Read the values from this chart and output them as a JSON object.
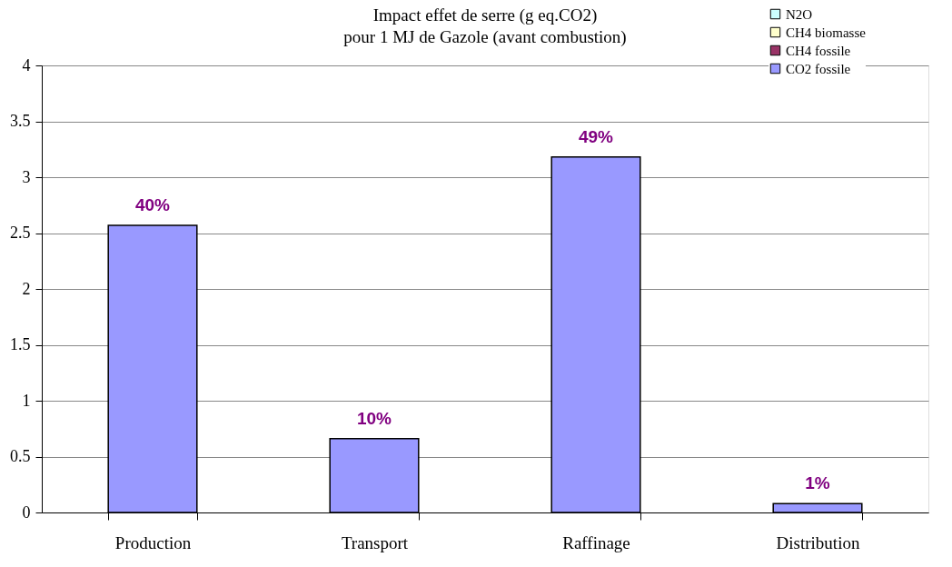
{
  "chart_data": {
    "type": "bar",
    "title": [
      "Impact effet de serre (g eq.CO2)",
      "pour 1 MJ de Gazole (avant combustion)"
    ],
    "categories": [
      "Production",
      "Transport",
      "Raffinage",
      "Distribution"
    ],
    "annotations": [
      {
        "text": "40%",
        "x": "Production",
        "y": 2.57
      },
      {
        "text": "10%",
        "x": "Transport",
        "y": 0.66
      },
      {
        "text": "49%",
        "x": "Raffinage",
        "y": 3.18
      },
      {
        "text": "1%",
        "x": "Distribution",
        "y": 0.08
      }
    ],
    "series": [
      {
        "name": "CO2 fossile",
        "color": "#9999ff",
        "values": [
          2.57,
          0.66,
          3.18,
          0.08
        ]
      },
      {
        "name": "CH4 fossile",
        "color": "#993366",
        "values": [
          null,
          null,
          null,
          null
        ]
      },
      {
        "name": "CH4 biomasse",
        "color": "#ffffcc",
        "values": [
          null,
          null,
          null,
          null
        ]
      },
      {
        "name": "N2O",
        "color": "#ccffff",
        "values": [
          null,
          null,
          null,
          null
        ]
      }
    ],
    "ylim": [
      0,
      4
    ],
    "yticks": [
      0,
      0.5,
      1,
      1.5,
      2,
      2.5,
      3,
      3.5,
      4
    ],
    "grid": "y",
    "legend": "top right"
  }
}
